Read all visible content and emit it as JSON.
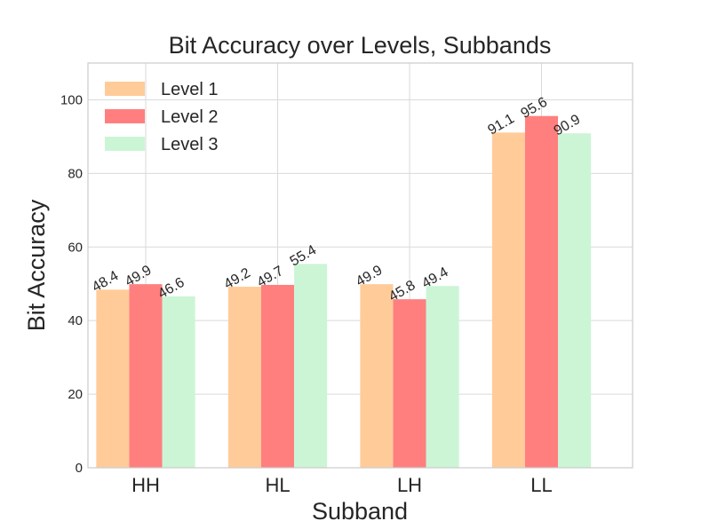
{
  "chart_data": {
    "type": "bar",
    "title": "Bit Accuracy over Levels, Subbands",
    "xlabel": "Subband",
    "ylabel": "Bit Accuracy",
    "categories": [
      "HH",
      "HL",
      "LH",
      "LL"
    ],
    "series": [
      {
        "name": "Level 1",
        "color": "#FFCC99",
        "values": [
          48.4,
          49.2,
          49.9,
          91.1
        ]
      },
      {
        "name": "Level 2",
        "color": "#FF7F7F",
        "values": [
          49.9,
          49.7,
          45.8,
          95.6
        ]
      },
      {
        "name": "Level 3",
        "color": "#CCF5D6",
        "values": [
          46.6,
          55.4,
          49.4,
          90.9
        ]
      }
    ],
    "ylim": [
      0,
      110
    ],
    "yticks": [
      0,
      20,
      40,
      60,
      80,
      100
    ],
    "grid": true,
    "legend_position": "top-left"
  }
}
